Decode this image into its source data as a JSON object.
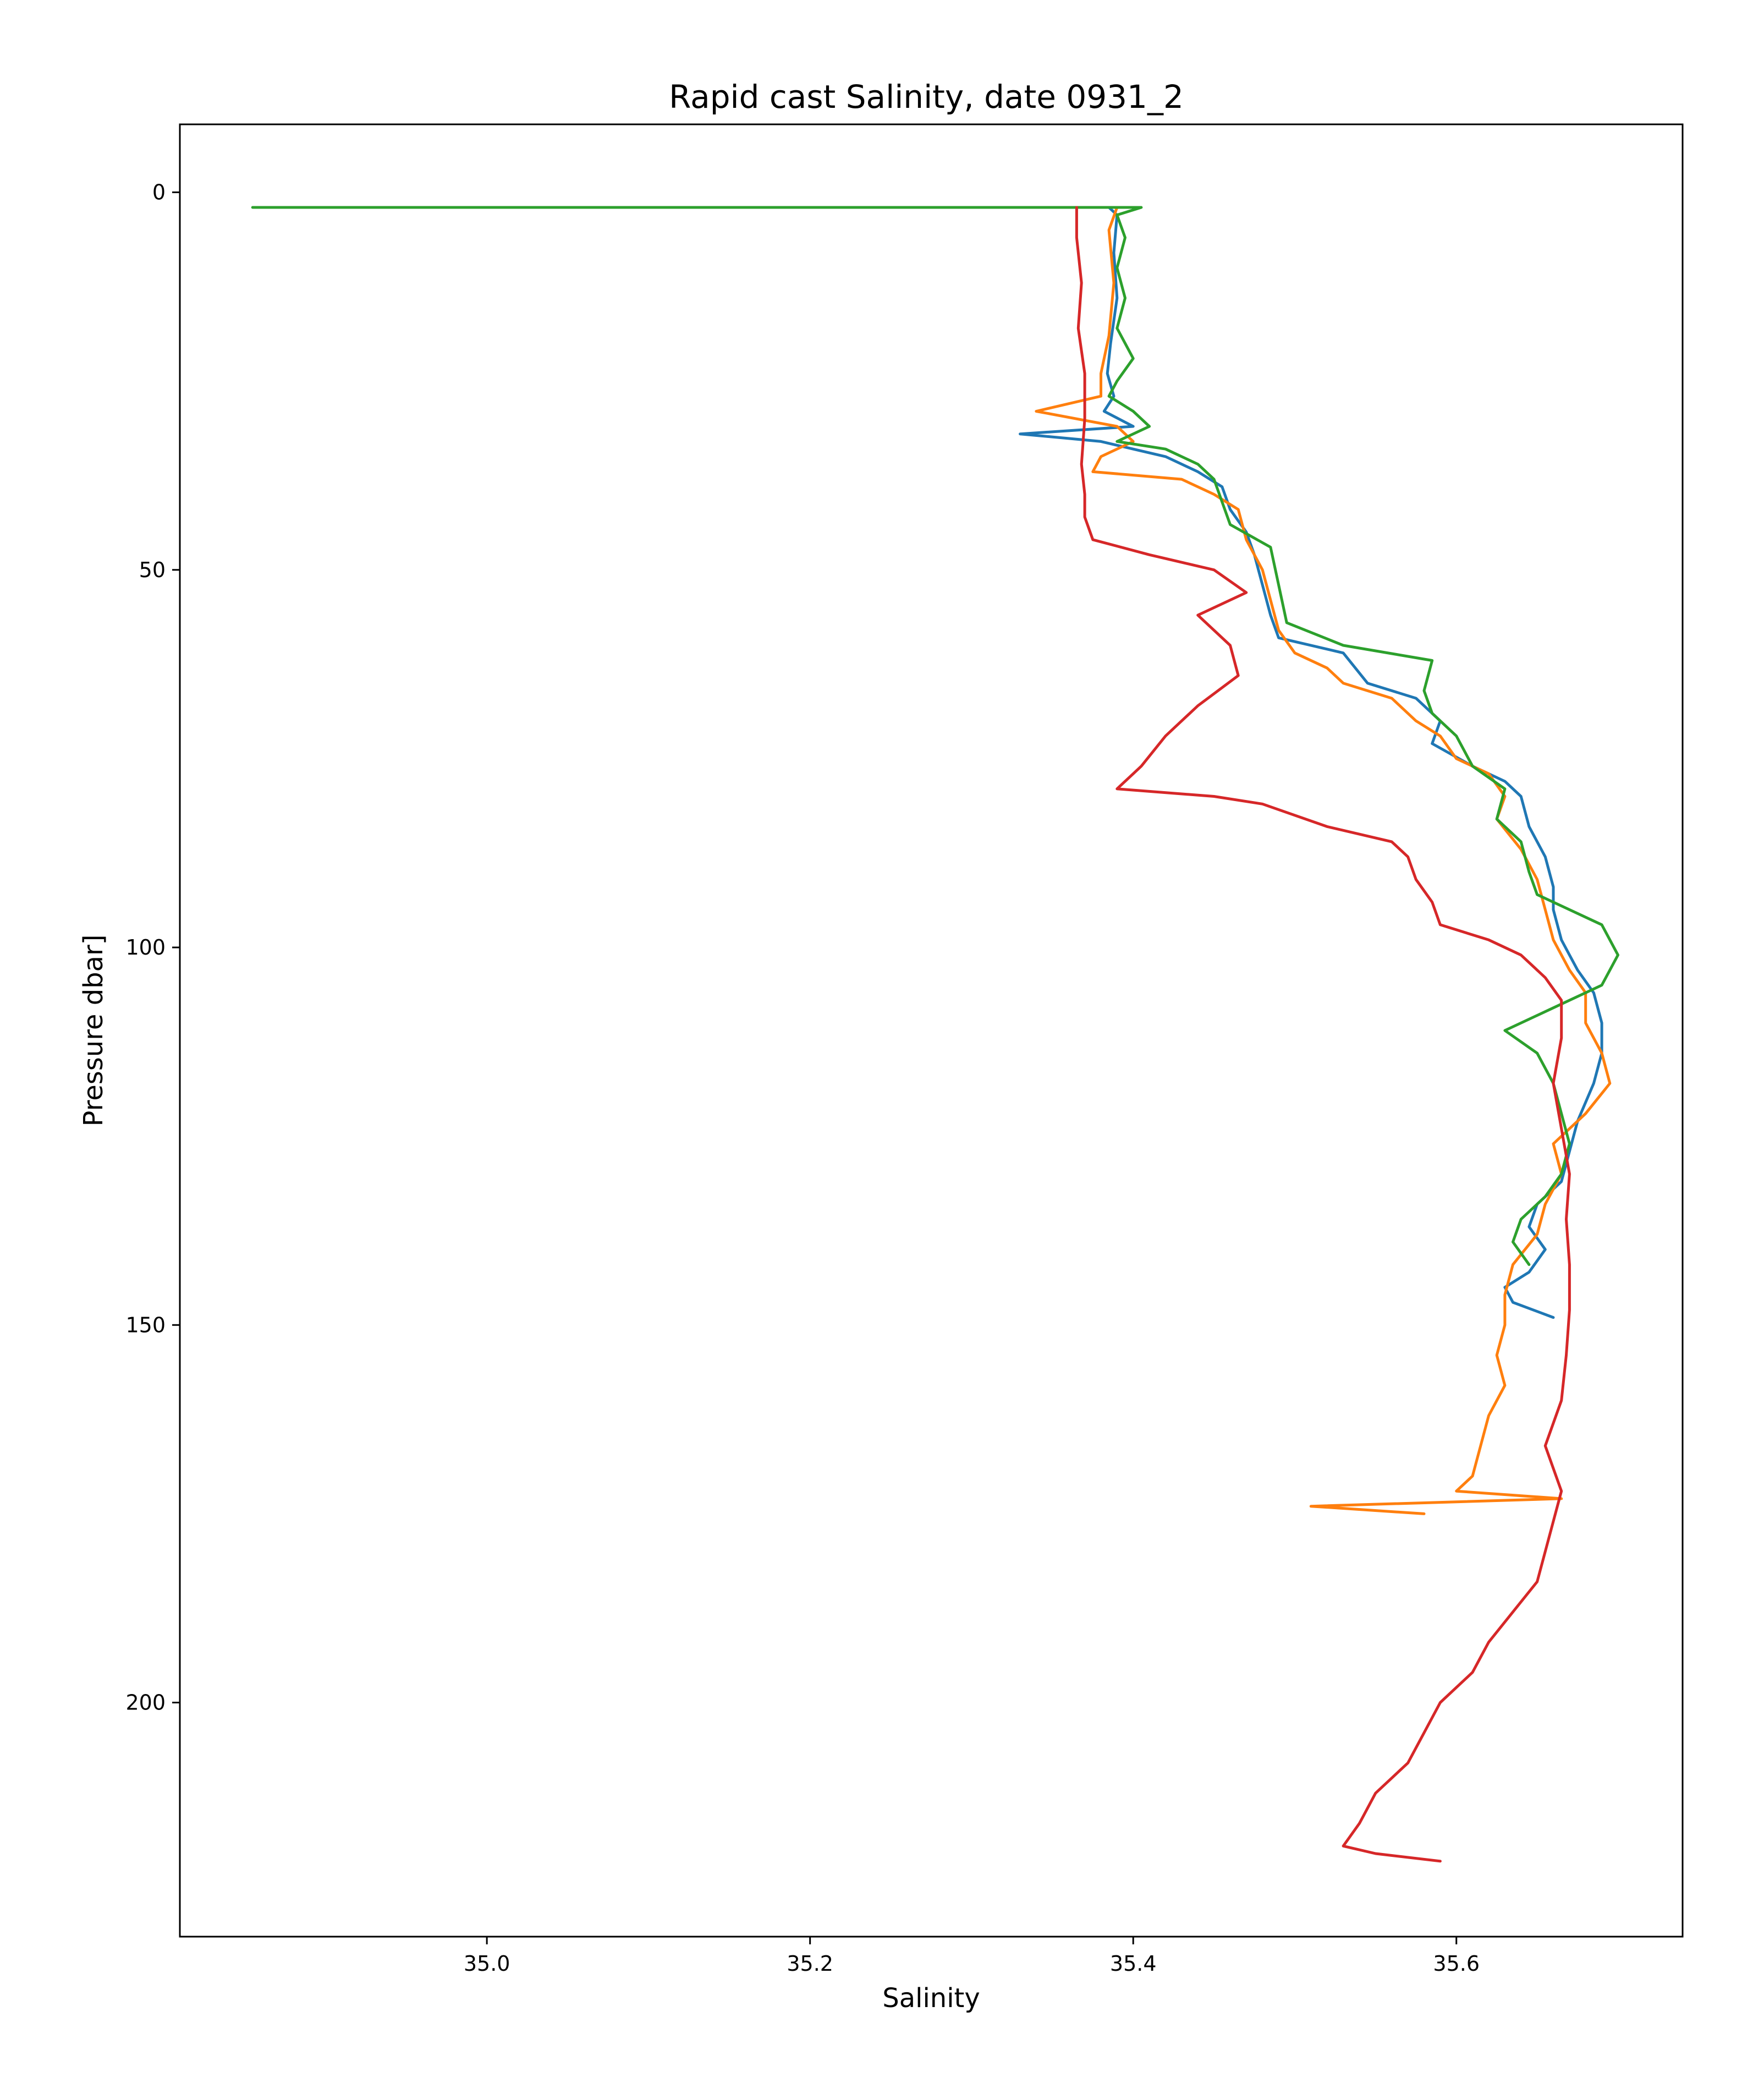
{
  "chart_data": {
    "type": "line",
    "title": "Rapid cast Salinity, date 0931_2",
    "xlabel": "Salinity",
    "ylabel": "Pressure dbar]",
    "xlim": [
      34.81,
      35.74
    ],
    "ylim": [
      231,
      -9
    ],
    "y_inverted": true,
    "grid": false,
    "legend": "none",
    "xticks": [
      35.0,
      35.2,
      35.4,
      35.6
    ],
    "xtick_labels": [
      "35.0",
      "35.2",
      "35.4",
      "35.6"
    ],
    "yticks": [
      0,
      50,
      100,
      150,
      200
    ],
    "ytick_labels": [
      "0",
      "50",
      "100",
      "150",
      "200"
    ],
    "series": [
      {
        "color": "#1f77b4",
        "points": [
          [
            35.385,
            2
          ],
          [
            35.39,
            3
          ],
          [
            35.388,
            8
          ],
          [
            35.39,
            14
          ],
          [
            35.386,
            20
          ],
          [
            35.384,
            24
          ],
          [
            35.388,
            27
          ],
          [
            35.382,
            29
          ],
          [
            35.4,
            31
          ],
          [
            35.33,
            32
          ],
          [
            35.38,
            33
          ],
          [
            35.4,
            34
          ],
          [
            35.42,
            35
          ],
          [
            35.44,
            37
          ],
          [
            35.455,
            39
          ],
          [
            35.46,
            42
          ],
          [
            35.47,
            45
          ],
          [
            35.475,
            48
          ],
          [
            35.48,
            52
          ],
          [
            35.485,
            56
          ],
          [
            35.49,
            59
          ],
          [
            35.53,
            61
          ],
          [
            35.545,
            65
          ],
          [
            35.575,
            67
          ],
          [
            35.59,
            70
          ],
          [
            35.585,
            73
          ],
          [
            35.61,
            76
          ],
          [
            35.63,
            78
          ],
          [
            35.64,
            80
          ],
          [
            35.645,
            84
          ],
          [
            35.655,
            88
          ],
          [
            35.66,
            92
          ],
          [
            35.66,
            95
          ],
          [
            35.665,
            99
          ],
          [
            35.67,
            101
          ],
          [
            35.675,
            103
          ],
          [
            35.685,
            106
          ],
          [
            35.69,
            110
          ],
          [
            35.69,
            114
          ],
          [
            35.685,
            118
          ],
          [
            35.675,
            123
          ],
          [
            35.67,
            127
          ],
          [
            35.665,
            131
          ],
          [
            35.65,
            134
          ],
          [
            35.645,
            137
          ],
          [
            35.655,
            140
          ],
          [
            35.645,
            143
          ],
          [
            35.63,
            145
          ],
          [
            35.635,
            147
          ],
          [
            35.66,
            149
          ]
        ]
      },
      {
        "color": "#ff7f0e",
        "points": [
          [
            35.39,
            2
          ],
          [
            35.385,
            5
          ],
          [
            35.388,
            12
          ],
          [
            35.385,
            19
          ],
          [
            35.38,
            24
          ],
          [
            35.38,
            27
          ],
          [
            35.34,
            29
          ],
          [
            35.39,
            31
          ],
          [
            35.4,
            33
          ],
          [
            35.38,
            35
          ],
          [
            35.375,
            37
          ],
          [
            35.43,
            38
          ],
          [
            35.45,
            40
          ],
          [
            35.465,
            42
          ],
          [
            35.47,
            46
          ],
          [
            35.48,
            50
          ],
          [
            35.485,
            54
          ],
          [
            35.49,
            58
          ],
          [
            35.5,
            61
          ],
          [
            35.52,
            63
          ],
          [
            35.53,
            65
          ],
          [
            35.56,
            67
          ],
          [
            35.575,
            70
          ],
          [
            35.59,
            72
          ],
          [
            35.6,
            75
          ],
          [
            35.62,
            77
          ],
          [
            35.63,
            80
          ],
          [
            35.625,
            83
          ],
          [
            35.64,
            87
          ],
          [
            35.65,
            91
          ],
          [
            35.655,
            95
          ],
          [
            35.66,
            99
          ],
          [
            35.67,
            103
          ],
          [
            35.68,
            106
          ],
          [
            35.68,
            110
          ],
          [
            35.69,
            114
          ],
          [
            35.695,
            118
          ],
          [
            35.68,
            122
          ],
          [
            35.66,
            126
          ],
          [
            35.665,
            130
          ],
          [
            35.655,
            134
          ],
          [
            35.65,
            138
          ],
          [
            35.635,
            142
          ],
          [
            35.63,
            146
          ],
          [
            35.63,
            150
          ],
          [
            35.625,
            154
          ],
          [
            35.63,
            158
          ],
          [
            35.62,
            162
          ],
          [
            35.615,
            166
          ],
          [
            35.61,
            170
          ],
          [
            35.6,
            172
          ],
          [
            35.665,
            173
          ],
          [
            35.51,
            174
          ],
          [
            35.58,
            175
          ]
        ]
      },
      {
        "color": "#2ca02c",
        "points": [
          [
            34.855,
            2
          ],
          [
            35.405,
            2
          ],
          [
            35.39,
            3
          ],
          [
            35.395,
            6
          ],
          [
            35.39,
            10
          ],
          [
            35.395,
            14
          ],
          [
            35.39,
            18
          ],
          [
            35.4,
            22
          ],
          [
            35.39,
            25
          ],
          [
            35.385,
            27
          ],
          [
            35.4,
            29
          ],
          [
            35.41,
            31
          ],
          [
            35.39,
            33
          ],
          [
            35.42,
            34
          ],
          [
            35.44,
            36
          ],
          [
            35.45,
            38
          ],
          [
            35.455,
            41
          ],
          [
            35.46,
            44
          ],
          [
            35.485,
            47
          ],
          [
            35.49,
            52
          ],
          [
            35.495,
            57
          ],
          [
            35.53,
            60
          ],
          [
            35.585,
            62
          ],
          [
            35.58,
            66
          ],
          [
            35.585,
            69
          ],
          [
            35.6,
            72
          ],
          [
            35.61,
            76
          ],
          [
            35.63,
            79
          ],
          [
            35.625,
            83
          ],
          [
            35.64,
            86
          ],
          [
            35.645,
            90
          ],
          [
            35.65,
            93
          ],
          [
            35.69,
            97
          ],
          [
            35.7,
            101
          ],
          [
            35.69,
            105
          ],
          [
            35.66,
            108
          ],
          [
            35.63,
            111
          ],
          [
            35.65,
            114
          ],
          [
            35.66,
            118
          ],
          [
            35.665,
            122
          ],
          [
            35.67,
            126
          ],
          [
            35.665,
            130
          ],
          [
            35.655,
            133
          ],
          [
            35.64,
            136
          ],
          [
            35.635,
            139
          ],
          [
            35.645,
            142
          ]
        ]
      },
      {
        "color": "#d62728",
        "points": [
          [
            35.365,
            2
          ],
          [
            35.365,
            6
          ],
          [
            35.368,
            12
          ],
          [
            35.366,
            18
          ],
          [
            35.37,
            24
          ],
          [
            35.37,
            30
          ],
          [
            35.368,
            36
          ],
          [
            35.37,
            40
          ],
          [
            35.37,
            43
          ],
          [
            35.375,
            46
          ],
          [
            35.41,
            48
          ],
          [
            35.45,
            50
          ],
          [
            35.47,
            53
          ],
          [
            35.44,
            56
          ],
          [
            35.46,
            60
          ],
          [
            35.465,
            64
          ],
          [
            35.44,
            68
          ],
          [
            35.42,
            72
          ],
          [
            35.405,
            76
          ],
          [
            35.39,
            79
          ],
          [
            35.45,
            80
          ],
          [
            35.48,
            81
          ],
          [
            35.52,
            84
          ],
          [
            35.56,
            86
          ],
          [
            35.57,
            88
          ],
          [
            35.575,
            91
          ],
          [
            35.585,
            94
          ],
          [
            35.59,
            97
          ],
          [
            35.62,
            99
          ],
          [
            35.64,
            101
          ],
          [
            35.655,
            104
          ],
          [
            35.665,
            107
          ],
          [
            35.665,
            112
          ],
          [
            35.66,
            118
          ],
          [
            35.665,
            124
          ],
          [
            35.67,
            130
          ],
          [
            35.668,
            136
          ],
          [
            35.67,
            142
          ],
          [
            35.67,
            148
          ],
          [
            35.668,
            154
          ],
          [
            35.665,
            160
          ],
          [
            35.655,
            166
          ],
          [
            35.665,
            172
          ],
          [
            35.66,
            176
          ],
          [
            35.655,
            180
          ],
          [
            35.65,
            184
          ],
          [
            35.635,
            188
          ],
          [
            35.62,
            192
          ],
          [
            35.61,
            196
          ],
          [
            35.59,
            200
          ],
          [
            35.58,
            204
          ],
          [
            35.57,
            208
          ],
          [
            35.55,
            212
          ],
          [
            35.54,
            216
          ],
          [
            35.53,
            219
          ],
          [
            35.55,
            220
          ],
          [
            35.59,
            221
          ]
        ]
      }
    ]
  }
}
